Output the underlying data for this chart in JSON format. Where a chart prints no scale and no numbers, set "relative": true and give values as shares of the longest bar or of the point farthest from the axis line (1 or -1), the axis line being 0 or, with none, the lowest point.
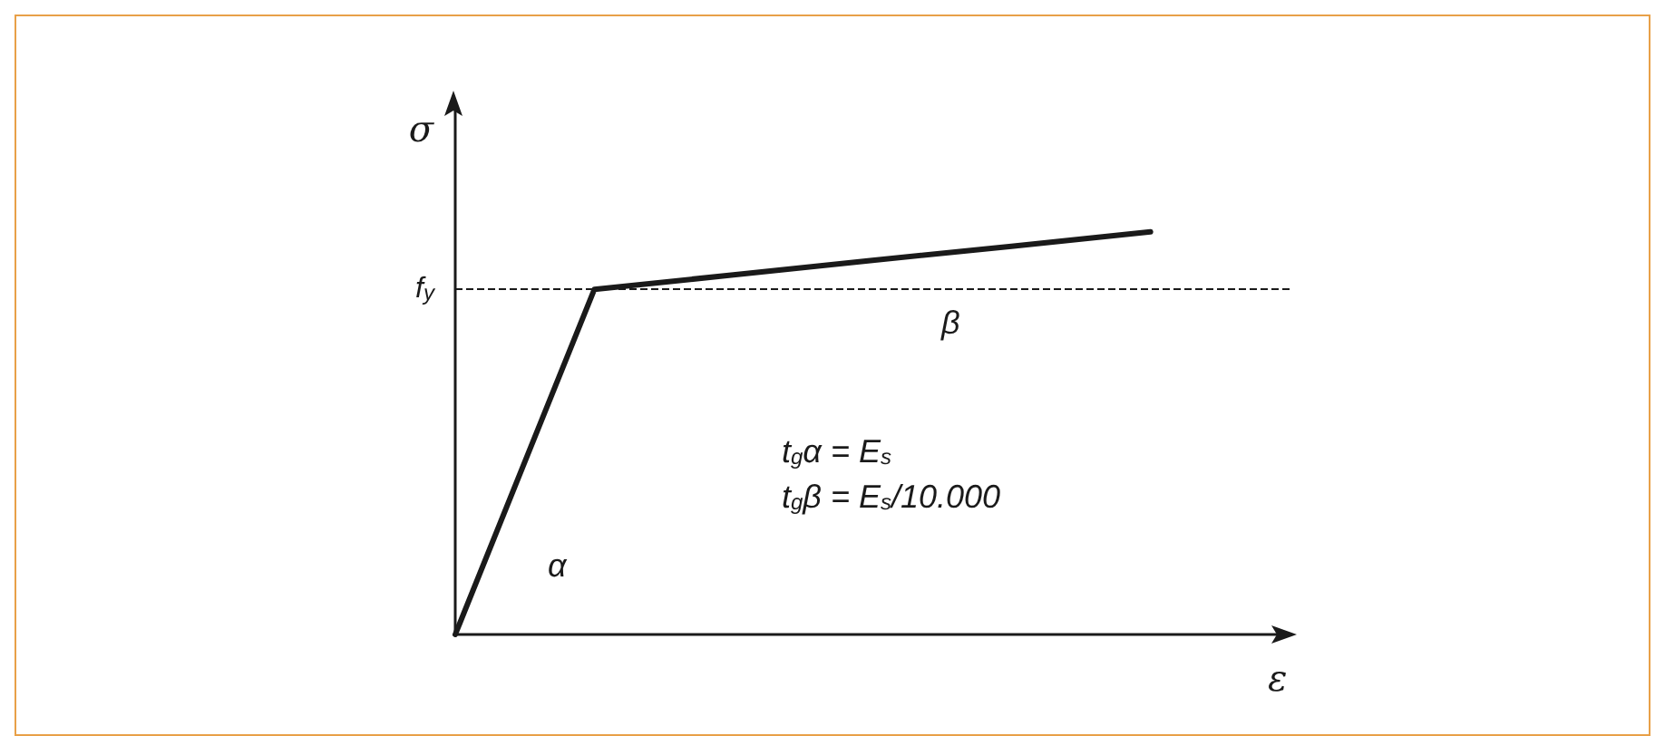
{
  "chart_data": {
    "type": "line",
    "relative": true,
    "xlabel": "ε",
    "ylabel": "σ",
    "categories": [
      null,
      null,
      null,
      null,
      null,
      null,
      null
    ],
    "series": [
      {
        "color": "#1a1a1a",
        "values": [
          0,
          0.857,
          0.893,
          0.929,
          0.964,
          1,
          null
        ]
      }
    ],
    "ref_lines": [
      {
        "axis": "y",
        "value": 0.857,
        "label": "f$_{y}$",
        "line_style": "dashed",
        "color": "#1a1a1a"
      }
    ],
    "annotations": [
      "α",
      "β",
      "t$_{g}$α = E$_{s}$",
      "t$_{g}$β = E$_{s}$/10.000"
    ],
    "grid": false,
    "marker": "none",
    "line_style": "solid"
  }
}
